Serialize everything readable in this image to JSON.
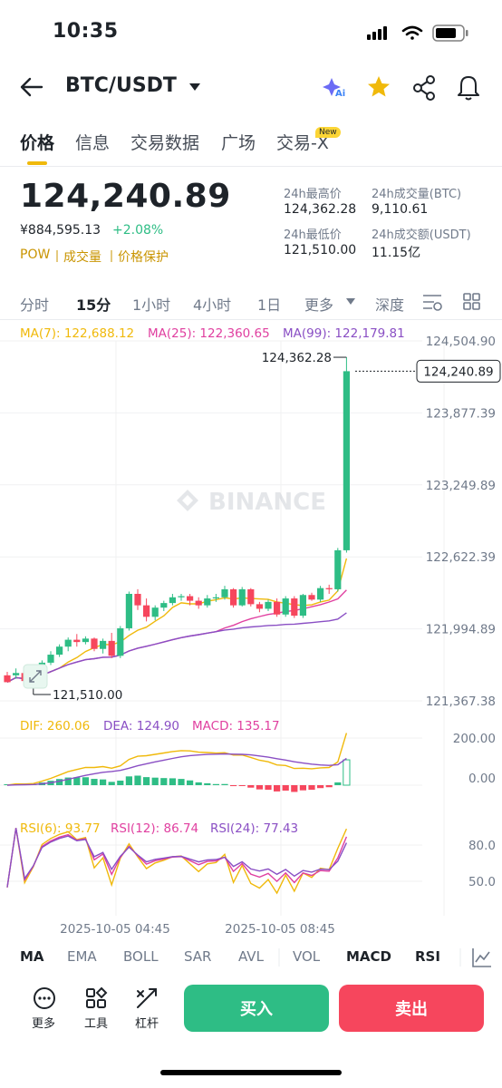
{
  "status": {
    "time": "10:35"
  },
  "header": {
    "pair": "BTC/USDT"
  },
  "tabs": [
    "价格",
    "信息",
    "交易数据",
    "广场",
    "交易-X"
  ],
  "new_badge": "New",
  "ticker": {
    "last_price": "124,240.89",
    "cny_price": "¥884,595.13",
    "change_pct": "+2.08%",
    "tags": [
      "POW",
      "成交量",
      "价格保护"
    ],
    "high_label": "24h最高价",
    "high": "124,362.28",
    "vol_btc_label": "24h成交量(BTC)",
    "vol_btc": "9,110.61",
    "low_label": "24h最低价",
    "low": "121,510.00",
    "vol_usdt_label": "24h成交额(USDT)",
    "vol_usdt": "11.15亿"
  },
  "intervals": [
    "分时",
    "15分",
    "1小时",
    "4小时",
    "1日",
    "更多",
    "深度"
  ],
  "ma": {
    "ma7": "MA(7): 122,688.12",
    "ma25": "MA(25): 122,360.65",
    "ma99": "MA(99): 122,179.81"
  },
  "macd_legend": {
    "dif": "DIF: 260.06",
    "dea": "DEA: 124.90",
    "macd": "MACD: 135.17"
  },
  "rsi_legend": {
    "rsi6": "RSI(6): 93.77",
    "rsi12": "RSI(12): 86.74",
    "rsi24": "RSI(24): 77.43"
  },
  "indicator_tabs": [
    "MA",
    "EMA",
    "BOLL",
    "SAR",
    "AVL",
    "VOL",
    "MACD",
    "RSI"
  ],
  "actions": {
    "more": "更多",
    "tools": "工具",
    "leverage": "杠杆",
    "buy": "买入",
    "sell": "卖出"
  },
  "watermark": "BINANCE",
  "colors": {
    "up": "#2ebd85",
    "down": "#f6465d",
    "ma7": "#f0b90b",
    "ma25": "#e040a0",
    "ma99": "#8a4fc4",
    "accent": "#fcd535"
  },
  "chart_data": {
    "type": "candlestick",
    "price_axis_ticks": [
      "124,504.90",
      "123,877.39",
      "123,249.89",
      "122,622.39",
      "121,994.89",
      "121,367.38"
    ],
    "ylim": [
      121367.38,
      124504.9
    ],
    "last_price_tag": "124,240.89",
    "high_marker": "124,362.28",
    "low_marker": "121,510.00",
    "time_ticks": [
      "2025-10-05 04:45",
      "2025-10-05 08:45"
    ],
    "candles": [
      [
        121590,
        121620,
        121560,
        121530
      ],
      [
        121590,
        121650,
        121560,
        121610
      ],
      [
        121610,
        121640,
        121530,
        121540
      ],
      [
        121540,
        121600,
        121510,
        121580
      ],
      [
        121580,
        121720,
        121560,
        121700
      ],
      [
        121700,
        121800,
        121680,
        121770
      ],
      [
        121770,
        121860,
        121750,
        121840
      ],
      [
        121840,
        121920,
        121800,
        121900
      ],
      [
        121900,
        121950,
        121840,
        121880
      ],
      [
        121880,
        121930,
        121860,
        121910
      ],
      [
        121910,
        121920,
        121800,
        121820
      ],
      [
        121820,
        121910,
        121780,
        121890
      ],
      [
        121890,
        121960,
        121740,
        121760
      ],
      [
        121760,
        122020,
        121740,
        122000
      ],
      [
        122000,
        122320,
        121980,
        122300
      ],
      [
        122300,
        122340,
        122160,
        122200
      ],
      [
        122200,
        122260,
        122060,
        122100
      ],
      [
        122100,
        122200,
        122070,
        122180
      ],
      [
        122180,
        122240,
        122150,
        122220
      ],
      [
        122220,
        122300,
        122200,
        122270
      ],
      [
        122270,
        122300,
        122240,
        122280
      ],
      [
        122280,
        122300,
        122200,
        122240
      ],
      [
        122240,
        122270,
        122170,
        122200
      ],
      [
        122200,
        122290,
        122180,
        122260
      ],
      [
        122260,
        122300,
        122230,
        122270
      ],
      [
        122270,
        122370,
        122250,
        122340
      ],
      [
        122340,
        122350,
        122180,
        122200
      ],
      [
        122200,
        122360,
        122190,
        122340
      ],
      [
        122340,
        122350,
        122190,
        122210
      ],
      [
        122210,
        122230,
        122140,
        122170
      ],
      [
        122170,
        122250,
        122150,
        122230
      ],
      [
        122230,
        122260,
        122100,
        122120
      ],
      [
        122120,
        122280,
        122100,
        122260
      ],
      [
        122260,
        122280,
        122090,
        122110
      ],
      [
        122110,
        122300,
        122090,
        122290
      ],
      [
        122290,
        122310,
        122240,
        122250
      ],
      [
        122250,
        122370,
        122230,
        122350
      ],
      [
        122350,
        122380,
        122300,
        122340
      ],
      [
        122340,
        122700,
        122320,
        122680
      ],
      [
        122680,
        124362.28,
        122660,
        124240.89
      ]
    ],
    "macd_axis_ticks": [
      "200.00",
      "0.00"
    ],
    "rsi_axis_ticks": [
      "80.0",
      "50.0"
    ]
  }
}
